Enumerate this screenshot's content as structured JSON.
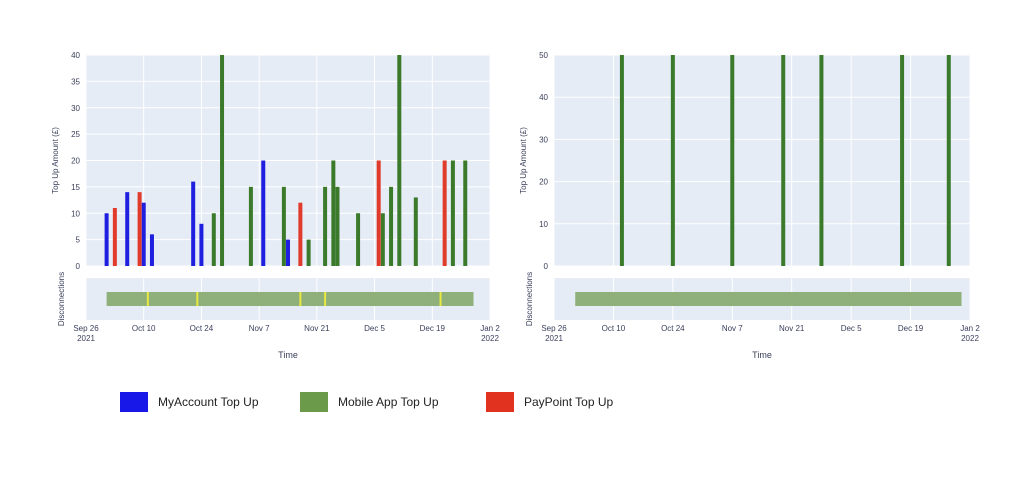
{
  "colors": {
    "plot_bg": "#e5ecf6",
    "grid": "#ffffff",
    "myaccount": "#1f1fe0",
    "mobile": "#3a7a2a",
    "paypoint": "#e03a2a",
    "disconnect_bar": "#8fb07a",
    "disconnect_marker": "#e8e840",
    "tick_text": "#3a3f5a"
  },
  "legend": [
    {
      "key": "myaccount",
      "label": "MyAccount Top Up",
      "color": "#1818e8"
    },
    {
      "key": "mobile",
      "label": "Mobile App Top Up",
      "color": "#6a9a4a"
    },
    {
      "key": "paypoint",
      "label": "PayPoint Top Up",
      "color": "#e0321e"
    }
  ],
  "chart_data": [
    {
      "type": "bar",
      "ylabel": "Top Up Amount (£)",
      "ylim": [
        0,
        40
      ],
      "yticks": [
        "0",
        "5",
        "10",
        "15",
        "20",
        "25",
        "30",
        "35",
        "40"
      ],
      "xlabel": "Time",
      "xrange": [
        "2021-09-26",
        "2022-01-02"
      ],
      "xticks": [
        {
          "date": "2021-09-26",
          "label": "Sep 26",
          "sub": "2021"
        },
        {
          "date": "2021-10-10",
          "label": "Oct 10",
          "sub": ""
        },
        {
          "date": "2021-10-24",
          "label": "Oct 24",
          "sub": ""
        },
        {
          "date": "2021-11-07",
          "label": "Nov 7",
          "sub": ""
        },
        {
          "date": "2021-11-21",
          "label": "Nov 21",
          "sub": ""
        },
        {
          "date": "2021-12-05",
          "label": "Dec 5",
          "sub": ""
        },
        {
          "date": "2021-12-19",
          "label": "Dec 19",
          "sub": ""
        },
        {
          "date": "2022-01-02",
          "label": "Jan 2",
          "sub": "2022"
        }
      ],
      "series": [
        {
          "name": "MyAccount Top Up",
          "color_key": "myaccount",
          "points": [
            {
              "x": "2021-10-01",
              "y": 10
            },
            {
              "x": "2021-10-06",
              "y": 14
            },
            {
              "x": "2021-10-10",
              "y": 12
            },
            {
              "x": "2021-10-12",
              "y": 6
            },
            {
              "x": "2021-10-22",
              "y": 16
            },
            {
              "x": "2021-10-24",
              "y": 8
            },
            {
              "x": "2021-11-08",
              "y": 20
            },
            {
              "x": "2021-11-14",
              "y": 5
            }
          ]
        },
        {
          "name": "Mobile App Top Up",
          "color_key": "mobile",
          "points": [
            {
              "x": "2021-10-27",
              "y": 10
            },
            {
              "x": "2021-10-29",
              "y": 40
            },
            {
              "x": "2021-11-05",
              "y": 15
            },
            {
              "x": "2021-11-13",
              "y": 15
            },
            {
              "x": "2021-11-19",
              "y": 5
            },
            {
              "x": "2021-11-23",
              "y": 15
            },
            {
              "x": "2021-11-25",
              "y": 20
            },
            {
              "x": "2021-11-26",
              "y": 15
            },
            {
              "x": "2021-12-01",
              "y": 10
            },
            {
              "x": "2021-12-07",
              "y": 10
            },
            {
              "x": "2021-12-09",
              "y": 15
            },
            {
              "x": "2021-12-11",
              "y": 40
            },
            {
              "x": "2021-12-15",
              "y": 13
            },
            {
              "x": "2021-12-24",
              "y": 20
            },
            {
              "x": "2021-12-27",
              "y": 20
            }
          ]
        },
        {
          "name": "PayPoint Top Up",
          "color_key": "paypoint",
          "points": [
            {
              "x": "2021-10-03",
              "y": 11
            },
            {
              "x": "2021-10-09",
              "y": 14
            },
            {
              "x": "2021-11-17",
              "y": 12
            },
            {
              "x": "2021-12-06",
              "y": 20
            },
            {
              "x": "2021-12-22",
              "y": 20
            }
          ]
        }
      ],
      "disconnections": {
        "ylabel": "Disconnections",
        "active": [
          "2021-10-01",
          "2021-12-29"
        ],
        "markers": [
          "2021-10-11",
          "2021-10-23",
          "2021-11-17",
          "2021-11-23",
          "2021-12-21"
        ]
      }
    },
    {
      "type": "bar",
      "ylabel": "Top Up Amount (£)",
      "ylim": [
        0,
        50
      ],
      "yticks": [
        "0",
        "10",
        "20",
        "30",
        "40",
        "50"
      ],
      "xlabel": "Time",
      "xrange": [
        "2021-09-26",
        "2022-01-02"
      ],
      "xticks": [
        {
          "date": "2021-09-26",
          "label": "Sep 26",
          "sub": "2021"
        },
        {
          "date": "2021-10-10",
          "label": "Oct 10",
          "sub": ""
        },
        {
          "date": "2021-10-24",
          "label": "Oct 24",
          "sub": ""
        },
        {
          "date": "2021-11-07",
          "label": "Nov 7",
          "sub": ""
        },
        {
          "date": "2021-11-21",
          "label": "Nov 21",
          "sub": ""
        },
        {
          "date": "2021-12-05",
          "label": "Dec 5",
          "sub": ""
        },
        {
          "date": "2021-12-19",
          "label": "Dec 19",
          "sub": ""
        },
        {
          "date": "2022-01-02",
          "label": "Jan 2",
          "sub": "2022"
        }
      ],
      "series": [
        {
          "name": "Mobile App Top Up",
          "color_key": "mobile",
          "points": [
            {
              "x": "2021-10-12",
              "y": 50
            },
            {
              "x": "2021-10-24",
              "y": 50
            },
            {
              "x": "2021-11-07",
              "y": 50
            },
            {
              "x": "2021-11-19",
              "y": 50
            },
            {
              "x": "2021-11-28",
              "y": 50
            },
            {
              "x": "2021-12-17",
              "y": 50
            },
            {
              "x": "2021-12-28",
              "y": 50
            }
          ]
        }
      ],
      "disconnections": {
        "ylabel": "Disconnections",
        "active": [
          "2021-10-01",
          "2021-12-31"
        ],
        "markers": []
      }
    }
  ]
}
